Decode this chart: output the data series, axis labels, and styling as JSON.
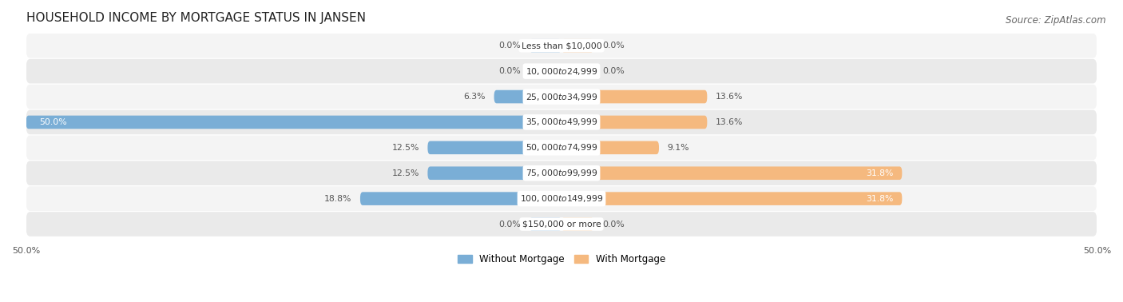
{
  "title": "HOUSEHOLD INCOME BY MORTGAGE STATUS IN JANSEN",
  "source": "Source: ZipAtlas.com",
  "categories": [
    "Less than $10,000",
    "$10,000 to $24,999",
    "$25,000 to $34,999",
    "$35,000 to $49,999",
    "$50,000 to $74,999",
    "$75,000 to $99,999",
    "$100,000 to $149,999",
    "$150,000 or more"
  ],
  "without_mortgage": [
    0.0,
    0.0,
    6.3,
    50.0,
    12.5,
    12.5,
    18.8,
    0.0
  ],
  "with_mortgage": [
    0.0,
    0.0,
    13.6,
    13.6,
    9.1,
    31.8,
    31.8,
    0.0
  ],
  "color_without": "#7aaed6",
  "color_with": "#f5b97f",
  "color_bg_even": "#f4f4f4",
  "color_bg_odd": "#eaeaea",
  "x_max": 50.0,
  "legend_without": "Without Mortgage",
  "legend_with": "With Mortgage",
  "title_fontsize": 11,
  "source_fontsize": 8.5,
  "bar_height": 0.52,
  "min_stub": 3.0,
  "figsize": [
    14.06,
    3.78
  ],
  "dpi": 100
}
